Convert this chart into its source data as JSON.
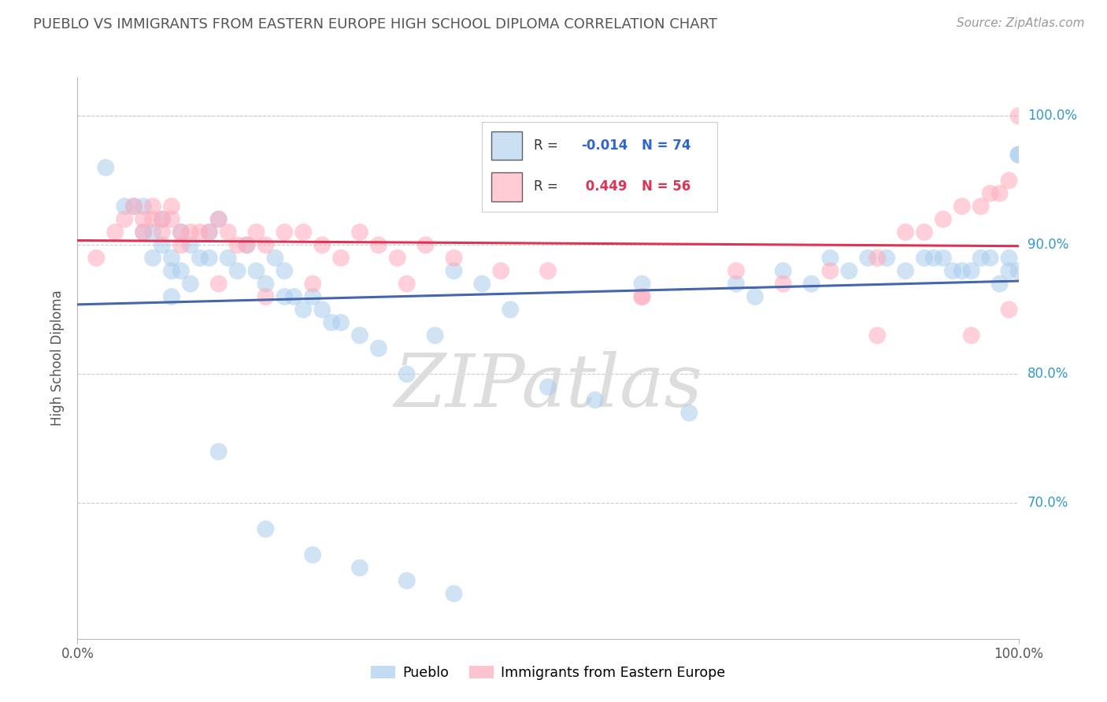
{
  "title": "PUEBLO VS IMMIGRANTS FROM EASTERN EUROPE HIGH SCHOOL DIPLOMA CORRELATION CHART",
  "source": "Source: ZipAtlas.com",
  "ylabel": "High School Diploma",
  "xlim": [
    0.0,
    1.0
  ],
  "ylim": [
    0.595,
    1.03
  ],
  "yticks": [
    0.7,
    0.8,
    0.9,
    1.0
  ],
  "ytick_labels": [
    "70.0%",
    "80.0%",
    "90.0%",
    "100.0%"
  ],
  "xticks": [
    0.0,
    1.0
  ],
  "xtick_labels": [
    "0.0%",
    "100.0%"
  ],
  "background_color": "#ffffff",
  "grid_color": "#cccccc",
  "blue_color": "#aaccee",
  "pink_color": "#ffaabb",
  "blue_line_color": "#4466aa",
  "pink_line_color": "#dd3355",
  "watermark_color": "#dddddd",
  "pueblo_x": [
    0.03,
    0.05,
    0.06,
    0.07,
    0.07,
    0.08,
    0.08,
    0.09,
    0.09,
    0.1,
    0.1,
    0.1,
    0.11,
    0.11,
    0.12,
    0.12,
    0.13,
    0.14,
    0.14,
    0.15,
    0.16,
    0.17,
    0.18,
    0.19,
    0.2,
    0.21,
    0.22,
    0.22,
    0.23,
    0.24,
    0.25,
    0.26,
    0.27,
    0.28,
    0.3,
    0.32,
    0.35,
    0.38,
    0.4,
    0.43,
    0.46,
    0.5,
    0.55,
    0.6,
    0.65,
    0.7,
    0.72,
    0.75,
    0.78,
    0.8,
    0.82,
    0.84,
    0.86,
    0.88,
    0.9,
    0.91,
    0.92,
    0.93,
    0.94,
    0.95,
    0.96,
    0.97,
    0.98,
    0.99,
    0.99,
    1.0,
    1.0,
    1.0,
    0.15,
    0.2,
    0.25,
    0.3,
    0.35,
    0.4
  ],
  "pueblo_y": [
    0.96,
    0.93,
    0.93,
    0.91,
    0.93,
    0.91,
    0.89,
    0.92,
    0.9,
    0.89,
    0.88,
    0.86,
    0.91,
    0.88,
    0.87,
    0.9,
    0.89,
    0.91,
    0.89,
    0.92,
    0.89,
    0.88,
    0.9,
    0.88,
    0.87,
    0.89,
    0.88,
    0.86,
    0.86,
    0.85,
    0.86,
    0.85,
    0.84,
    0.84,
    0.83,
    0.82,
    0.8,
    0.83,
    0.88,
    0.87,
    0.85,
    0.79,
    0.78,
    0.87,
    0.77,
    0.87,
    0.86,
    0.88,
    0.87,
    0.89,
    0.88,
    0.89,
    0.89,
    0.88,
    0.89,
    0.89,
    0.89,
    0.88,
    0.88,
    0.88,
    0.89,
    0.89,
    0.87,
    0.89,
    0.88,
    0.88,
    0.97,
    0.97,
    0.74,
    0.68,
    0.66,
    0.65,
    0.64,
    0.63
  ],
  "immigrant_x": [
    0.02,
    0.04,
    0.05,
    0.06,
    0.07,
    0.07,
    0.08,
    0.08,
    0.09,
    0.09,
    0.1,
    0.1,
    0.11,
    0.11,
    0.12,
    0.13,
    0.14,
    0.15,
    0.16,
    0.17,
    0.18,
    0.19,
    0.2,
    0.22,
    0.24,
    0.26,
    0.28,
    0.3,
    0.32,
    0.34,
    0.37,
    0.4,
    0.5,
    0.6,
    0.7,
    0.8,
    0.85,
    0.88,
    0.9,
    0.92,
    0.94,
    0.96,
    0.97,
    0.98,
    0.99,
    1.0,
    0.15,
    0.2,
    0.25,
    0.35,
    0.45,
    0.6,
    0.75,
    0.85,
    0.95,
    0.99
  ],
  "immigrant_y": [
    0.89,
    0.91,
    0.92,
    0.93,
    0.92,
    0.91,
    0.93,
    0.92,
    0.92,
    0.91,
    0.93,
    0.92,
    0.91,
    0.9,
    0.91,
    0.91,
    0.91,
    0.92,
    0.91,
    0.9,
    0.9,
    0.91,
    0.9,
    0.91,
    0.91,
    0.9,
    0.89,
    0.91,
    0.9,
    0.89,
    0.9,
    0.89,
    0.88,
    0.86,
    0.88,
    0.88,
    0.89,
    0.91,
    0.91,
    0.92,
    0.93,
    0.93,
    0.94,
    0.94,
    0.95,
    1.0,
    0.87,
    0.86,
    0.87,
    0.87,
    0.88,
    0.86,
    0.87,
    0.83,
    0.83,
    0.85
  ]
}
